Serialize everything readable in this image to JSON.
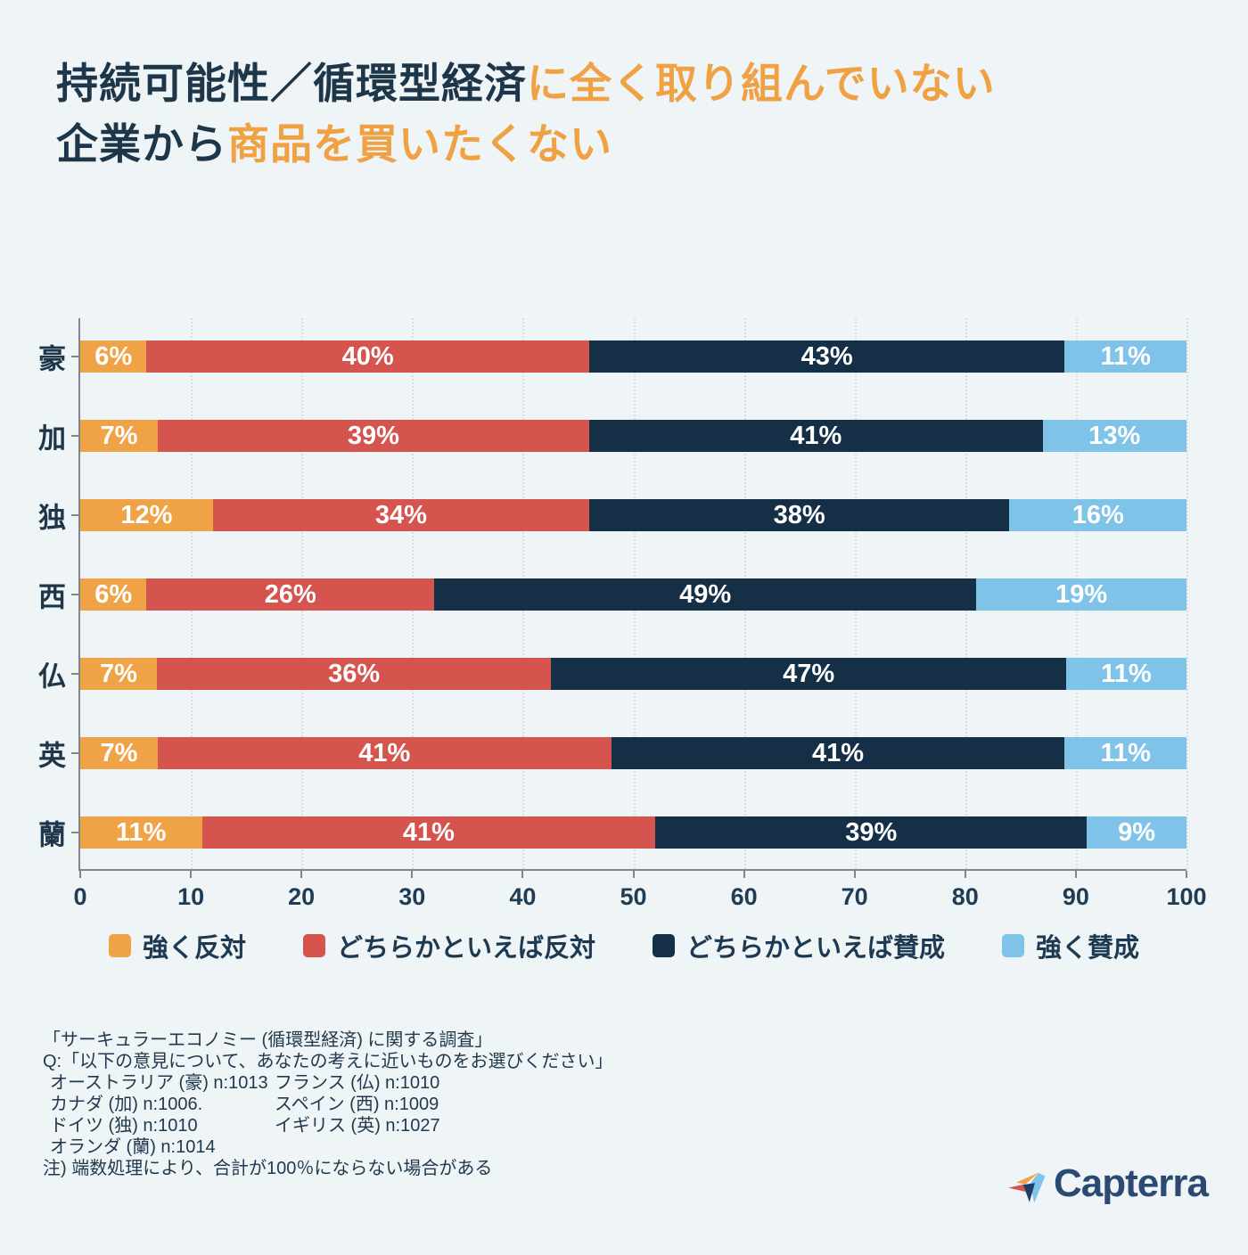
{
  "title": {
    "line1_dark": "持続可能性／循環型経済",
    "line1_accent": "に全く取り組んでいない",
    "line2_dark": "企業から",
    "line2_accent": "商品を買いたくない"
  },
  "colors": {
    "background": "#EFF4F6",
    "title_dark": "#1D3649",
    "title_accent": "#F0A143",
    "axis": "#7E868E",
    "gridline": "#D9DDE0",
    "bar_label": "#FFFFFF",
    "logo_navy": "#2B4A73"
  },
  "chart_data": {
    "type": "bar",
    "orientation": "horizontal",
    "stacked": true,
    "categories": [
      "豪",
      "加",
      "独",
      "西",
      "仏",
      "英",
      "蘭"
    ],
    "series": [
      {
        "name": "強く反対",
        "color": "#F0A346",
        "values": [
          6,
          7,
          12,
          6,
          7,
          7,
          11
        ]
      },
      {
        "name": "どちらかといえば反対",
        "color": "#D5544E",
        "values": [
          40,
          39,
          34,
          26,
          36,
          41,
          41
        ]
      },
      {
        "name": "どちらかといえば賛成",
        "color": "#152F47",
        "values": [
          43,
          41,
          38,
          49,
          47,
          41,
          39
        ]
      },
      {
        "name": "強く賛成",
        "color": "#7FC3E8",
        "values": [
          11,
          13,
          16,
          19,
          11,
          11,
          9
        ]
      }
    ],
    "value_suffix": "%",
    "xlim": [
      0,
      100
    ],
    "x_ticks": [
      0,
      10,
      20,
      30,
      40,
      50,
      60,
      70,
      80,
      90,
      100
    ],
    "grid": "vertical-dotted",
    "legend_position": "bottom"
  },
  "footnotes": {
    "source": "「サーキュラーエコノミー (循環型経済) に関する調査」",
    "question": "Q:「以下の意見について、あなたの考えに近いものをお選びください」",
    "sample_rows": [
      {
        "col1": "オーストラリア (豪) n:1013",
        "col2": "フランス (仏) n:1010"
      },
      {
        "col1": "カナダ (加) n:1006.",
        "col2": "スペイン (西) n:1009"
      },
      {
        "col1": "ドイツ (独) n:1010",
        "col2": "イギリス (英) n:1027"
      },
      {
        "col1": "オランダ (蘭) n:1014",
        "col2": ""
      }
    ],
    "note": "注)  端数処理により、合計が100％にならない場合がある"
  },
  "logo": {
    "text": "Capterra"
  }
}
